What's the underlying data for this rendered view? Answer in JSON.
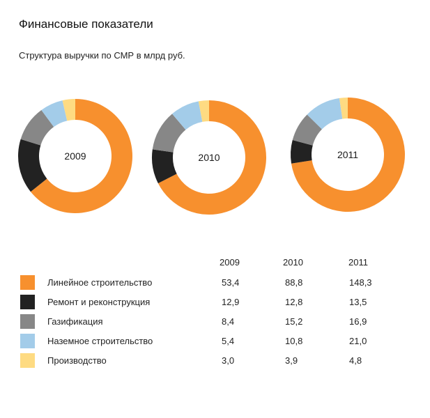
{
  "page_title": "Финансовые показатели",
  "subtitle": "Структура выручки по СМР в млрд руб.",
  "colors": {
    "Линейное строительство": "#f7902e",
    "Ремонт и реконструкция": "#222222",
    "Газификация": "#878787",
    "Наземное строительство": "#a3cce9",
    "Производство": "#fedb82"
  },
  "chart_data": {
    "type": "pie",
    "title": "Структура выручки по СМР в млрд руб.",
    "years": [
      "2009",
      "2010",
      "2011"
    ],
    "categories": [
      "Линейное строительство",
      "Ремонт и реконструкция",
      "Газификация",
      "Наземное строительство",
      "Производство"
    ],
    "series": [
      {
        "name": "2009",
        "values": [
          53.4,
          12.9,
          8.4,
          5.4,
          3.0
        ],
        "labels": [
          "53,4",
          "12,9",
          "8,4",
          "5,4",
          "3,0"
        ]
      },
      {
        "name": "2010",
        "values": [
          88.8,
          12.8,
          15.2,
          10.8,
          3.9
        ],
        "labels": [
          "88,8",
          "12,8",
          "15,2",
          "10,8",
          "3,9"
        ]
      },
      {
        "name": "2011",
        "values": [
          148.3,
          13.5,
          16.9,
          21.0,
          4.8
        ],
        "labels": [
          "148,3",
          "13,5",
          "16,9",
          "21,0",
          "4,8"
        ]
      }
    ],
    "legend_position": "bottom-left",
    "xlabel": "",
    "ylabel": ""
  }
}
